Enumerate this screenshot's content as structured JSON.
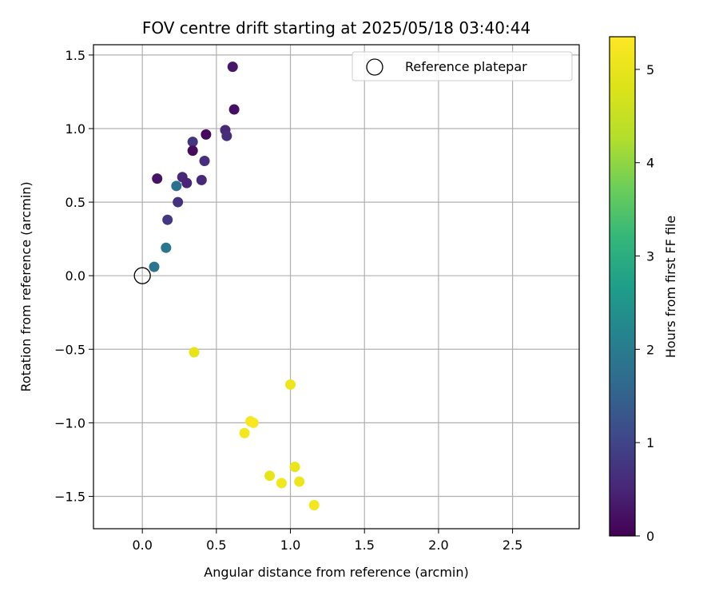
{
  "chart_data": {
    "type": "scatter",
    "title": "FOV centre drift starting at 2025/05/18 03:40:44",
    "xlabel": "Angular distance from reference (arcmin)",
    "ylabel": "Rotation from reference (arcmin)",
    "xlim": [
      -0.33,
      2.95
    ],
    "ylim": [
      -1.72,
      1.57
    ],
    "xticks": [
      0.0,
      0.5,
      1.0,
      1.5,
      2.0,
      2.5
    ],
    "xtick_labels": [
      "0.0",
      "0.5",
      "1.0",
      "1.5",
      "2.0",
      "2.5"
    ],
    "yticks": [
      -1.5,
      -1.0,
      -0.5,
      0.0,
      0.5,
      1.0,
      1.5
    ],
    "ytick_labels": [
      "−1.5",
      "−1.0",
      "−0.5",
      "0.0",
      "0.5",
      "1.0",
      "1.5"
    ],
    "grid": true,
    "legend": {
      "label": "Reference platepar",
      "position": "top-right"
    },
    "reference_point": {
      "x": 0.0,
      "y": 0.0
    },
    "colorbar": {
      "label": "Hours from first FF file",
      "range": [
        0,
        5.35
      ],
      "ticks": [
        0,
        1,
        2,
        3,
        4,
        5
      ],
      "tick_labels": [
        "0",
        "1",
        "2",
        "3",
        "4",
        "5"
      ],
      "colormap": "viridis"
    },
    "series": [
      {
        "name": "FOV centre",
        "points": [
          {
            "x": 0.61,
            "y": 1.42,
            "h": 0.3
          },
          {
            "x": 0.62,
            "y": 1.13,
            "h": 0.2
          },
          {
            "x": 0.56,
            "y": 0.99,
            "h": 0.55
          },
          {
            "x": 0.57,
            "y": 0.95,
            "h": 0.6
          },
          {
            "x": 0.43,
            "y": 0.96,
            "h": 0.1
          },
          {
            "x": 0.34,
            "y": 0.91,
            "h": 0.75
          },
          {
            "x": 0.34,
            "y": 0.85,
            "h": 0.15
          },
          {
            "x": 0.42,
            "y": 0.78,
            "h": 0.65
          },
          {
            "x": 0.1,
            "y": 0.66,
            "h": 0.25
          },
          {
            "x": 0.27,
            "y": 0.67,
            "h": 0.55
          },
          {
            "x": 0.4,
            "y": 0.65,
            "h": 0.55
          },
          {
            "x": 0.3,
            "y": 0.63,
            "h": 0.5
          },
          {
            "x": 0.23,
            "y": 0.61,
            "h": 1.8
          },
          {
            "x": 0.24,
            "y": 0.5,
            "h": 0.7
          },
          {
            "x": 0.17,
            "y": 0.38,
            "h": 0.8
          },
          {
            "x": 0.16,
            "y": 0.19,
            "h": 1.9
          },
          {
            "x": 0.08,
            "y": 0.06,
            "h": 1.85
          },
          {
            "x": 0.35,
            "y": -0.52,
            "h": 5.0
          },
          {
            "x": 1.0,
            "y": -0.74,
            "h": 5.1
          },
          {
            "x": 0.73,
            "y": -0.99,
            "h": 5.25
          },
          {
            "x": 0.75,
            "y": -1.0,
            "h": 5.3
          },
          {
            "x": 0.69,
            "y": -1.07,
            "h": 5.2
          },
          {
            "x": 1.03,
            "y": -1.3,
            "h": 5.05
          },
          {
            "x": 0.86,
            "y": -1.36,
            "h": 5.0
          },
          {
            "x": 0.94,
            "y": -1.41,
            "h": 5.15
          },
          {
            "x": 1.06,
            "y": -1.4,
            "h": 5.1
          },
          {
            "x": 1.16,
            "y": -1.56,
            "h": 5.2
          }
        ]
      }
    ]
  }
}
